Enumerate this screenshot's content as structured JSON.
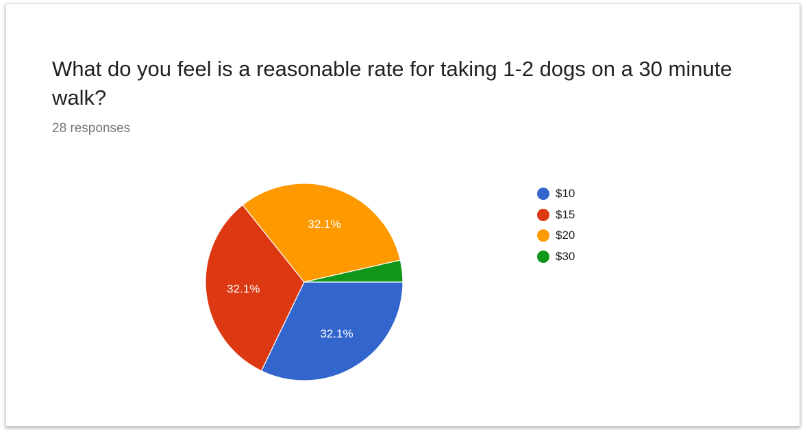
{
  "card": {
    "title": "What do you feel is a reasonable rate for taking 1-2 dogs on a 30 minute walk?",
    "subtitle": "28 responses"
  },
  "chart_data": {
    "type": "pie",
    "title": "What do you feel is a reasonable rate for taking 1-2 dogs on a 30 minute walk?",
    "subtitle": "28 responses",
    "categories": [
      "$10",
      "$15",
      "$20",
      "$30"
    ],
    "values": [
      9,
      9,
      9,
      1
    ],
    "percent_labels": [
      "32.1%",
      "32.1%",
      "32.1%",
      ""
    ],
    "colors": [
      "#3366cc",
      "#dc3912",
      "#ff9900",
      "#109618"
    ],
    "legend": "right",
    "start": "3 o'clock, clockwise"
  }
}
